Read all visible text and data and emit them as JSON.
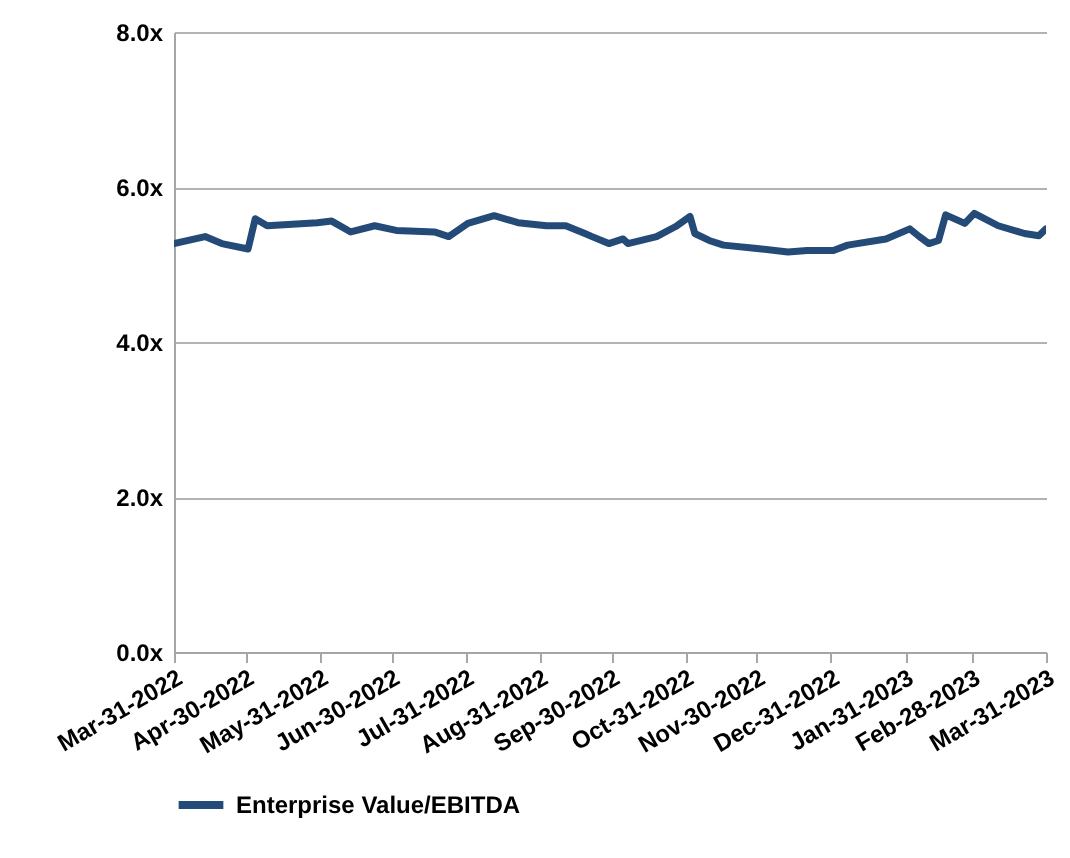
{
  "chart_data": {
    "type": "line",
    "x": [
      "2022-03-31",
      "2022-04-13",
      "2022-04-20",
      "2022-05-01",
      "2022-05-04",
      "2022-05-09",
      "2022-05-30",
      "2022-06-05",
      "2022-06-13",
      "2022-06-23",
      "2022-07-02",
      "2022-07-18",
      "2022-07-24",
      "2022-08-01",
      "2022-08-12",
      "2022-08-22",
      "2022-09-03",
      "2022-09-11",
      "2022-09-19",
      "2022-09-22",
      "2022-09-29",
      "2022-10-05",
      "2022-10-07",
      "2022-10-19",
      "2022-10-27",
      "2022-11-02",
      "2022-11-04",
      "2022-11-10",
      "2022-11-16",
      "2022-11-29",
      "2022-12-13",
      "2022-12-21",
      "2023-01-01",
      "2023-01-07",
      "2023-01-23",
      "2023-02-02",
      "2023-02-06",
      "2023-02-10",
      "2023-02-14",
      "2023-02-17",
      "2023-02-25",
      "2023-03-01",
      "2023-03-11",
      "2023-03-22",
      "2023-03-28",
      "2023-03-31"
    ],
    "series": [
      {
        "name": "Enterprise Value/EBITDA",
        "color": "#244a77",
        "values": [
          5.27,
          5.36,
          5.27,
          5.2,
          5.59,
          5.5,
          5.54,
          5.56,
          5.42,
          5.5,
          5.44,
          5.42,
          5.36,
          5.53,
          5.63,
          5.54,
          5.5,
          5.5,
          5.4,
          5.36,
          5.27,
          5.33,
          5.27,
          5.36,
          5.49,
          5.62,
          5.4,
          5.31,
          5.25,
          5.21,
          5.16,
          5.18,
          5.18,
          5.25,
          5.33,
          5.46,
          5.36,
          5.27,
          5.31,
          5.64,
          5.53,
          5.66,
          5.5,
          5.4,
          5.37,
          5.46
        ]
      }
    ],
    "xlim": [
      "2022-03-31",
      "2023-03-31"
    ],
    "xticks": [
      {
        "value": "2022-03-31",
        "label": "Mar-31-2022"
      },
      {
        "value": "2022-04-30",
        "label": "Apr-30-2022"
      },
      {
        "value": "2022-05-31",
        "label": "May-31-2022"
      },
      {
        "value": "2022-06-30",
        "label": "Jun-30-2022"
      },
      {
        "value": "2022-07-31",
        "label": "Jul-31-2022"
      },
      {
        "value": "2022-08-31",
        "label": "Aug-31-2022"
      },
      {
        "value": "2022-09-30",
        "label": "Sep-30-2022"
      },
      {
        "value": "2022-10-31",
        "label": "Oct-31-2022"
      },
      {
        "value": "2022-11-30",
        "label": "Nov-30-2022"
      },
      {
        "value": "2022-12-31",
        "label": "Dec-31-2022"
      },
      {
        "value": "2023-01-31",
        "label": "Jan-31-2023"
      },
      {
        "value": "2023-02-28",
        "label": "Feb-28-2023"
      },
      {
        "value": "2023-03-31",
        "label": "Mar-31-2023"
      }
    ],
    "ylim": [
      0,
      8
    ],
    "yticks": [
      {
        "value": 0,
        "label": "0.0x"
      },
      {
        "value": 2,
        "label": "2.0x"
      },
      {
        "value": 4,
        "label": "4.0x"
      },
      {
        "value": 6,
        "label": "6.0x"
      },
      {
        "value": 8,
        "label": "8.0x"
      }
    ],
    "grid": "y",
    "legend": "bottom",
    "marker": "none",
    "line_style": "solid"
  }
}
